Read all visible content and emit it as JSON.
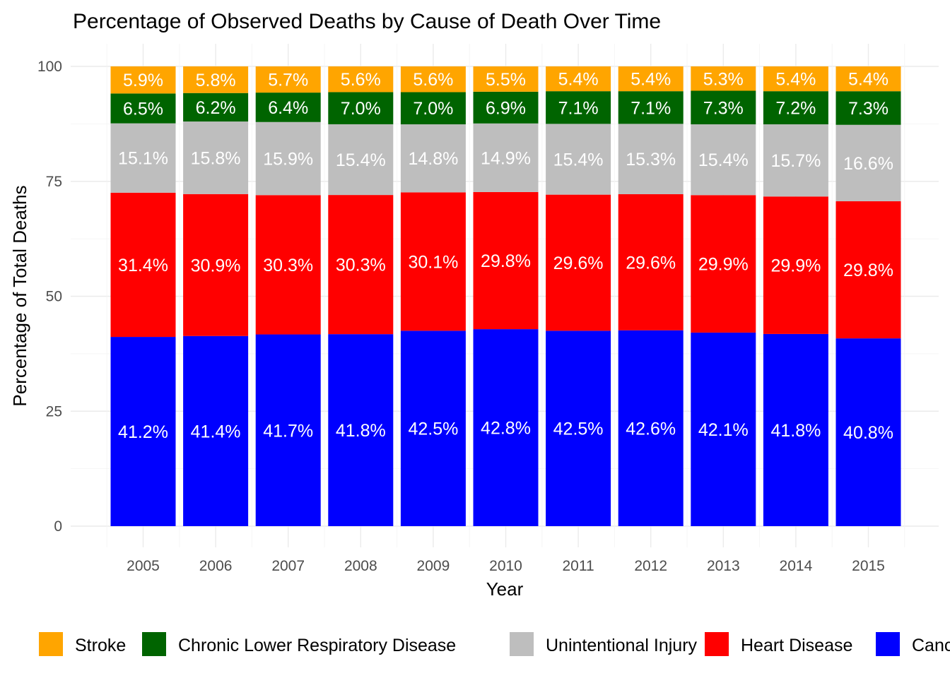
{
  "chart_data": {
    "type": "bar",
    "stacked": true,
    "title": "Percentage of Observed Deaths by Cause of Death Over Time",
    "xlabel": "Year",
    "ylabel": "Percentage of Total Deaths",
    "ylim": [
      0,
      100
    ],
    "yticks": [
      "0",
      "25",
      "50",
      "75",
      "100"
    ],
    "grid": true,
    "legend_position": "bottom",
    "categories": [
      "2005",
      "2006",
      "2007",
      "2008",
      "2009",
      "2010",
      "2011",
      "2012",
      "2013",
      "2014",
      "2015"
    ],
    "series": [
      {
        "name": "Cancer",
        "legend_label": "Canc",
        "color": "#0000ff",
        "values": [
          41.2,
          41.4,
          41.7,
          41.8,
          42.5,
          42.8,
          42.5,
          42.6,
          42.1,
          41.8,
          40.8
        ],
        "labels": [
          "41.2%",
          "41.4%",
          "41.7%",
          "41.8%",
          "42.5%",
          "42.8%",
          "42.5%",
          "42.6%",
          "42.1%",
          "41.8%",
          "40.8%"
        ]
      },
      {
        "name": "Heart Disease",
        "legend_label": "Heart Disease",
        "color": "#ff0000",
        "values": [
          31.4,
          30.9,
          30.3,
          30.3,
          30.1,
          29.8,
          29.6,
          29.6,
          29.9,
          29.9,
          29.8
        ],
        "labels": [
          "31.4%",
          "30.9%",
          "30.3%",
          "30.3%",
          "30.1%",
          "29.8%",
          "29.6%",
          "29.6%",
          "29.9%",
          "29.9%",
          "29.8%"
        ]
      },
      {
        "name": "Unintentional Injury",
        "legend_label": "Unintentional Injury",
        "color": "#bebebe",
        "values": [
          15.1,
          15.8,
          15.9,
          15.4,
          14.8,
          14.9,
          15.4,
          15.3,
          15.4,
          15.7,
          16.6
        ],
        "labels": [
          "15.1%",
          "15.8%",
          "15.9%",
          "15.4%",
          "14.8%",
          "14.9%",
          "15.4%",
          "15.3%",
          "15.4%",
          "15.7%",
          "16.6%"
        ]
      },
      {
        "name": "Chronic Lower Respiratory Disease",
        "legend_label": "Chronic Lower Respiratory Disease",
        "color": "#006400",
        "values": [
          6.5,
          6.2,
          6.4,
          7.0,
          7.0,
          6.9,
          7.1,
          7.1,
          7.3,
          7.2,
          7.3
        ],
        "labels": [
          "6.5%",
          "6.2%",
          "6.4%",
          "7.0%",
          "7.0%",
          "6.9%",
          "7.1%",
          "7.1%",
          "7.3%",
          "7.2%",
          "7.3%"
        ]
      },
      {
        "name": "Stroke",
        "legend_label": "Stroke",
        "color": "#ffa500",
        "values": [
          5.9,
          5.8,
          5.7,
          5.6,
          5.6,
          5.5,
          5.4,
          5.4,
          5.3,
          5.4,
          5.4
        ],
        "labels": [
          "5.9%",
          "5.8%",
          "5.7%",
          "5.6%",
          "5.6%",
          "5.5%",
          "5.4%",
          "5.4%",
          "5.3%",
          "5.4%",
          "5.4%"
        ]
      }
    ],
    "legend_order": [
      "Stroke",
      "Chronic Lower Respiratory Disease",
      "Unintentional Injury",
      "Heart Disease",
      "Cancer"
    ]
  }
}
